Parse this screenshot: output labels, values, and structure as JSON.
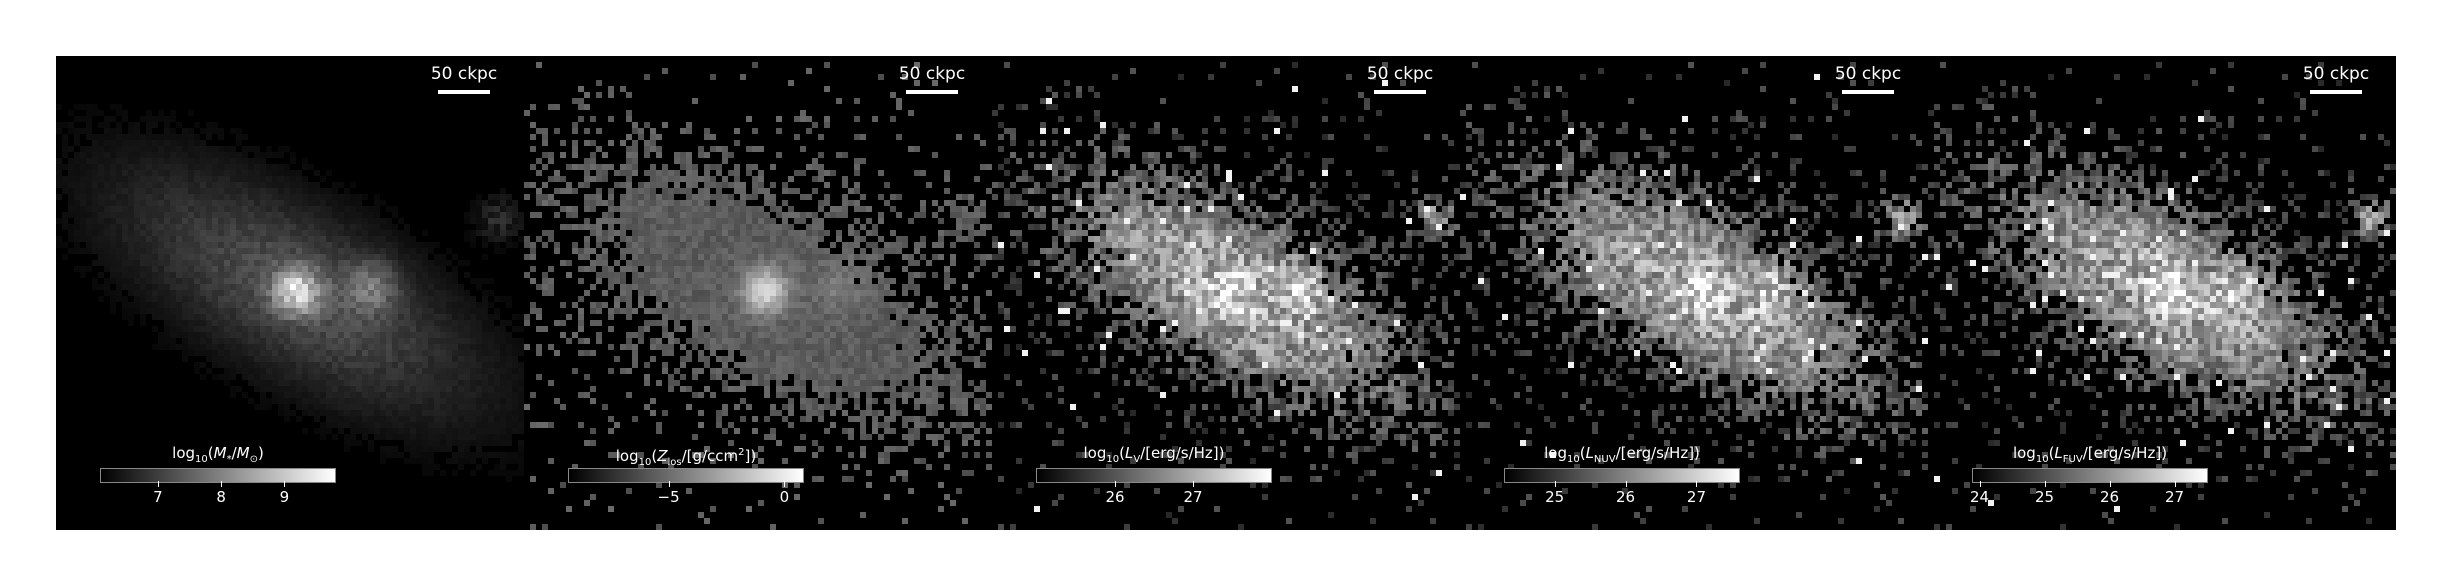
{
  "figure": {
    "panels": [
      {
        "scale_label": "50 ckpc",
        "cbar_title_html": "log<sub>10</sub>(<i>M</i><sub>*</sub>/<i>M</i><sub>⊙</sub>)",
        "cbar_min": 6.1,
        "cbar_max": 9.8,
        "ticks": [
          "7",
          "8",
          "9"
        ],
        "tick_values": [
          7,
          8,
          9
        ],
        "style": "smooth"
      },
      {
        "scale_label": "50 ckpc",
        "cbar_title_html": "log<sub>10</sub>(<i>Z</i><sub>los</sub>/[g/ccm<sup>2</sup>])",
        "cbar_min": -9.3,
        "cbar_max": 0.8,
        "ticks": [
          "−5",
          "0"
        ],
        "tick_values": [
          -5,
          0
        ],
        "style": "metal"
      },
      {
        "scale_label": "50 ckpc",
        "cbar_title_html": "log<sub>10</sub>(<i>L</i><sub>V</sub>/[erg/s/Hz])",
        "cbar_min": 25.0,
        "cbar_max": 28.0,
        "ticks": [
          "26",
          "27"
        ],
        "tick_values": [
          26,
          27
        ],
        "style": "light"
      },
      {
        "scale_label": "50 ckpc",
        "cbar_title_html": "log<sub>10</sub>(<i>L</i><sub>NUV</sub>/[erg/s/Hz])",
        "cbar_min": 24.3,
        "cbar_max": 27.6,
        "ticks": [
          "25",
          "26",
          "27"
        ],
        "tick_values": [
          25,
          26,
          27
        ],
        "style": "light"
      },
      {
        "scale_label": "50 ckpc",
        "cbar_title_html": "log<sub>10</sub>(<i>L</i><sub>FUV</sub>/[erg/s/Hz])",
        "cbar_min": 23.9,
        "cbar_max": 27.5,
        "ticks": [
          "24",
          "25",
          "26",
          "27"
        ],
        "tick_values": [
          24,
          25,
          26,
          27
        ],
        "style": "light"
      }
    ]
  }
}
